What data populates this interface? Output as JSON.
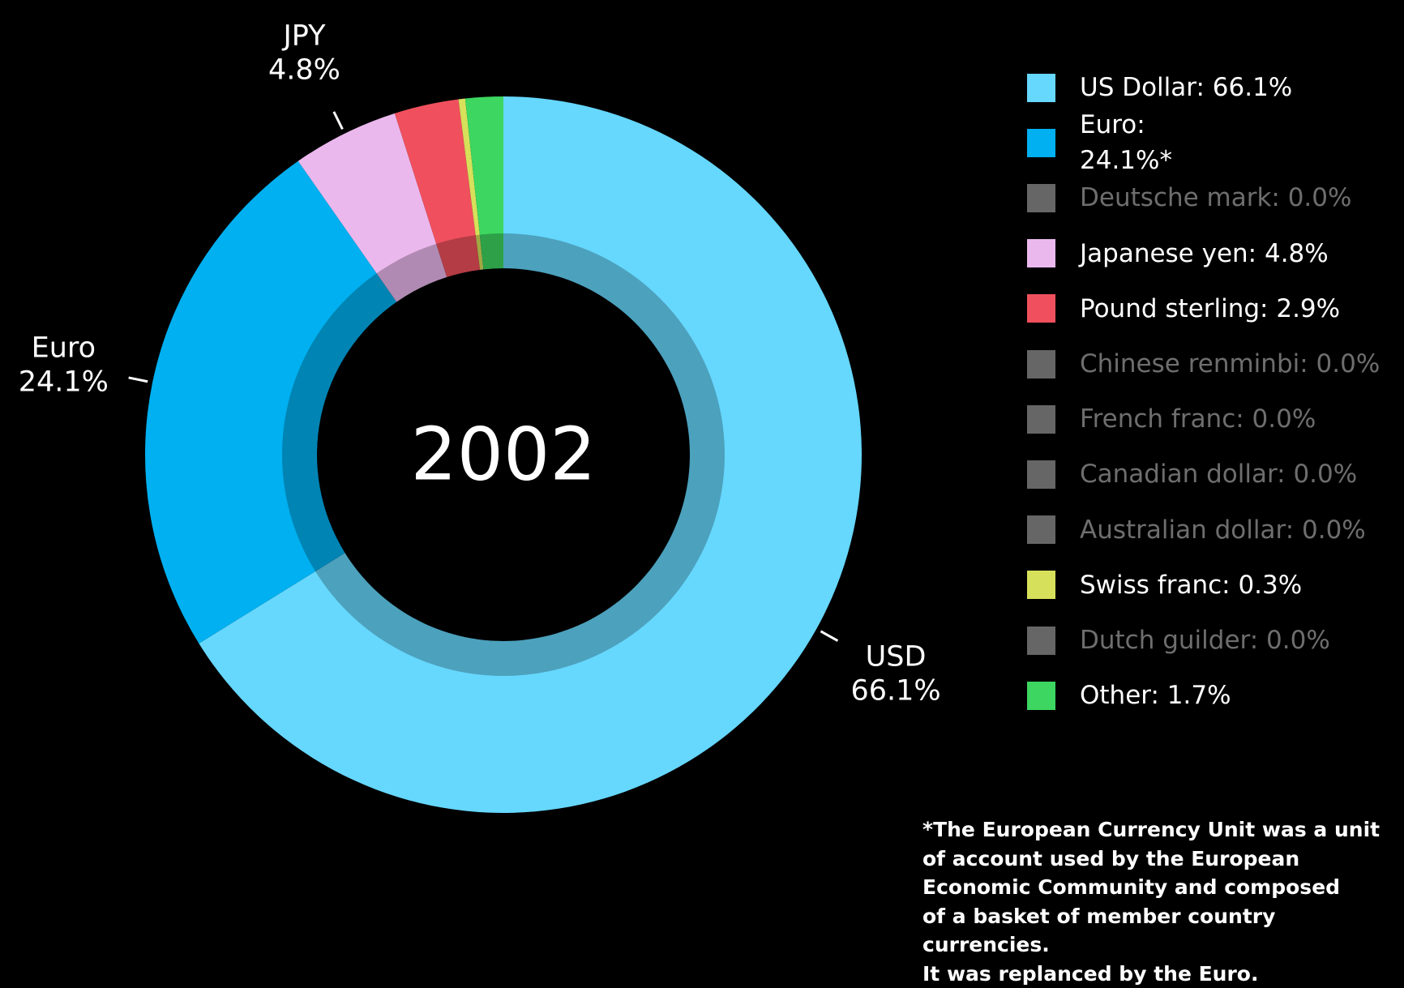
{
  "chart_data": {
    "type": "pie",
    "center_label": "2002",
    "categories": [
      "US Dollar",
      "Euro",
      "Deutsche mark",
      "Japanese yen",
      "Pound sterling",
      "Chinese renminbi",
      "French franc",
      "Canadian dollar",
      "Australian dollar",
      "Swiss franc",
      "Dutch guilder",
      "Other"
    ],
    "values": [
      66.1,
      24.1,
      0.0,
      4.8,
      2.9,
      0.0,
      0.0,
      0.0,
      0.0,
      0.3,
      0.0,
      1.7
    ],
    "colors": [
      "#66d7fd",
      "#00b0f0",
      "#666666",
      "#ebb8ee",
      "#f0505d",
      "#666666",
      "#666666",
      "#666666",
      "#666666",
      "#d6e05a",
      "#666666",
      "#3cd660"
    ],
    "legend_labels": [
      "US Dollar: 66.1%",
      "Euro:\n24.1%*",
      "Deutsche mark: 0.0%",
      "Japanese yen: 4.8%",
      "Pound sterling: 2.9%",
      "Chinese renminbi: 0.0%",
      "French franc: 0.0%",
      "Canadian dollar: 0.0%",
      "Australian dollar: 0.0%",
      "Swiss franc: 0.3%",
      "Dutch guilder: 0.0%",
      "Other: 1.7%"
    ],
    "short_labels": [
      "USD",
      "Euro",
      null,
      "JPY",
      null,
      null,
      null,
      null,
      null,
      null,
      null,
      null
    ],
    "value_labels": [
      "66.1%",
      "24.1%",
      null,
      "4.8%",
      null,
      null,
      null,
      null,
      null,
      null,
      null,
      null
    ],
    "footnote": "*The European Currency Unit was a unit\nof account used by the European\nEconomic Community and composed\nof a basket of member country currencies.\nIt was replanced by the Euro."
  }
}
